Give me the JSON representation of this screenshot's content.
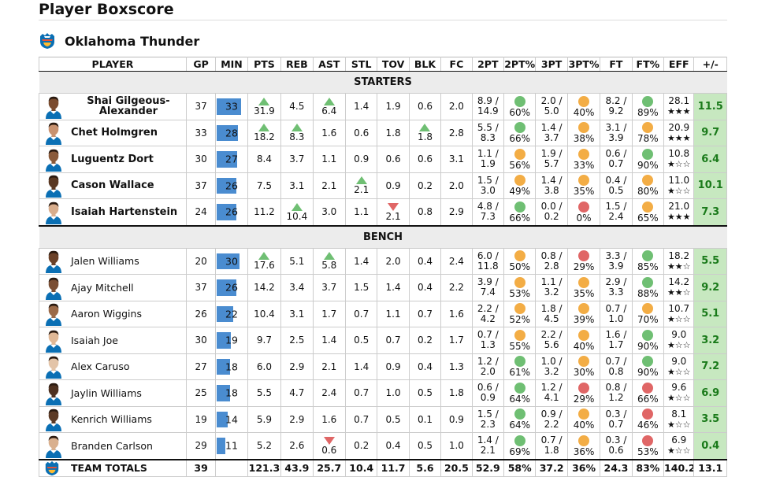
{
  "page_title": "Player Boxscore",
  "team": {
    "name": "Oklahoma Thunder",
    "logo_icon": "thunder-logo-icon"
  },
  "colors": {
    "min_bar": "#4a8cd0",
    "good": "#6fbf73",
    "mid": "#f3ad45",
    "bad": "#e06666",
    "plus_minus_bg": "#c7e8c0"
  },
  "columns": [
    "PLAYER",
    "GP",
    "MIN",
    "PTS",
    "REB",
    "AST",
    "STL",
    "TOV",
    "BLK",
    "FC",
    "2PT",
    "2PT%",
    "3PT",
    "3PT%",
    "FT",
    "FT%",
    "EFF",
    "+/-"
  ],
  "sections": {
    "starters": "STARTERS",
    "bench": "BENCH"
  },
  "starters": [
    {
      "name": "Shai Gilgeous-Alexander",
      "gp": "37",
      "min": "33",
      "pts": "31.9",
      "pts_trend": "up",
      "reb": "4.5",
      "reb_trend": "",
      "ast": "6.4",
      "ast_trend": "up",
      "stl": "1.4",
      "stl_trend": "",
      "tov": "1.9",
      "tov_trend": "",
      "blk": "0.6",
      "blk_trend": "",
      "fc": "2.0",
      "two_pt": "8.9 / 14.9",
      "two_pct": "60%",
      "two_color": "good",
      "three_pt": "2.0 / 5.0",
      "three_pct": "40%",
      "three_color": "mid",
      "ft": "8.2 / 9.2",
      "ft_pct": "89%",
      "ft_color": "good",
      "eff": "28.1",
      "stars": "★★★",
      "pm": "11.5"
    },
    {
      "name": "Chet Holmgren",
      "gp": "33",
      "min": "28",
      "pts": "18.2",
      "pts_trend": "up",
      "reb": "8.3",
      "reb_trend": "up",
      "ast": "1.6",
      "ast_trend": "",
      "stl": "0.6",
      "stl_trend": "",
      "tov": "1.8",
      "tov_trend": "",
      "blk": "1.8",
      "blk_trend": "up",
      "fc": "2.8",
      "two_pt": "5.5 / 8.3",
      "two_pct": "66%",
      "two_color": "good",
      "three_pt": "1.4 / 3.7",
      "three_pct": "38%",
      "three_color": "mid",
      "ft": "3.1 / 3.9",
      "ft_pct": "78%",
      "ft_color": "mid",
      "eff": "20.9",
      "stars": "★★★",
      "pm": "9.7"
    },
    {
      "name": "Luguentz Dort",
      "gp": "30",
      "min": "27",
      "pts": "8.4",
      "pts_trend": "",
      "reb": "3.7",
      "reb_trend": "",
      "ast": "1.1",
      "ast_trend": "",
      "stl": "0.9",
      "stl_trend": "",
      "tov": "0.6",
      "tov_trend": "",
      "blk": "0.6",
      "blk_trend": "",
      "fc": "3.1",
      "two_pt": "1.1 / 1.9",
      "two_pct": "56%",
      "two_color": "mid",
      "three_pt": "1.9 / 5.7",
      "three_pct": "33%",
      "three_color": "mid",
      "ft": "0.6 / 0.7",
      "ft_pct": "90%",
      "ft_color": "good",
      "eff": "10.8",
      "stars": "★☆☆",
      "pm": "6.4"
    },
    {
      "name": "Cason Wallace",
      "gp": "37",
      "min": "26",
      "pts": "7.5",
      "pts_trend": "",
      "reb": "3.1",
      "reb_trend": "",
      "ast": "2.1",
      "ast_trend": "",
      "stl": "2.1",
      "stl_trend": "up",
      "tov": "0.9",
      "tov_trend": "",
      "blk": "0.2",
      "blk_trend": "",
      "fc": "2.0",
      "two_pt": "1.5 / 3.0",
      "two_pct": "49%",
      "two_color": "mid",
      "three_pt": "1.4 / 3.8",
      "three_pct": "35%",
      "three_color": "mid",
      "ft": "0.4 / 0.5",
      "ft_pct": "80%",
      "ft_color": "mid",
      "eff": "11.0",
      "stars": "★☆☆",
      "pm": "10.1"
    },
    {
      "name": "Isaiah Hartenstein",
      "gp": "24",
      "min": "26",
      "pts": "11.2",
      "pts_trend": "",
      "reb": "10.4",
      "reb_trend": "up",
      "ast": "3.0",
      "ast_trend": "",
      "stl": "1.1",
      "stl_trend": "",
      "tov": "2.1",
      "tov_trend": "down",
      "blk": "0.8",
      "blk_trend": "",
      "fc": "2.9",
      "two_pt": "4.8 / 7.3",
      "two_pct": "66%",
      "two_color": "good",
      "three_pt": "0.0 / 0.2",
      "three_pct": "0%",
      "three_color": "bad",
      "ft": "1.5 / 2.4",
      "ft_pct": "65%",
      "ft_color": "mid",
      "eff": "21.0",
      "stars": "★★★",
      "pm": "7.3"
    }
  ],
  "bench": [
    {
      "name": "Jalen Williams",
      "gp": "20",
      "min": "30",
      "pts": "17.6",
      "pts_trend": "up",
      "reb": "5.1",
      "reb_trend": "",
      "ast": "5.8",
      "ast_trend": "up",
      "stl": "1.4",
      "stl_trend": "",
      "tov": "2.0",
      "tov_trend": "",
      "blk": "0.4",
      "blk_trend": "",
      "fc": "2.4",
      "two_pt": "6.0 / 11.8",
      "two_pct": "50%",
      "two_color": "mid",
      "three_pt": "0.8 / 2.8",
      "three_pct": "29%",
      "three_color": "bad",
      "ft": "3.3 / 3.9",
      "ft_pct": "85%",
      "ft_color": "good",
      "eff": "18.2",
      "stars": "★★☆",
      "pm": "5.5"
    },
    {
      "name": "Ajay Mitchell",
      "gp": "37",
      "min": "26",
      "pts": "14.2",
      "pts_trend": "",
      "reb": "3.4",
      "reb_trend": "",
      "ast": "3.7",
      "ast_trend": "",
      "stl": "1.5",
      "stl_trend": "",
      "tov": "1.4",
      "tov_trend": "",
      "blk": "0.4",
      "blk_trend": "",
      "fc": "2.2",
      "two_pt": "3.9 / 7.4",
      "two_pct": "53%",
      "two_color": "mid",
      "three_pt": "1.1 / 3.2",
      "three_pct": "35%",
      "three_color": "mid",
      "ft": "2.9 / 3.3",
      "ft_pct": "88%",
      "ft_color": "good",
      "eff": "14.2",
      "stars": "★★☆",
      "pm": "9.2"
    },
    {
      "name": "Aaron Wiggins",
      "gp": "26",
      "min": "22",
      "pts": "10.4",
      "pts_trend": "",
      "reb": "3.1",
      "reb_trend": "",
      "ast": "1.7",
      "ast_trend": "",
      "stl": "0.7",
      "stl_trend": "",
      "tov": "1.1",
      "tov_trend": "",
      "blk": "0.7",
      "blk_trend": "",
      "fc": "1.6",
      "two_pt": "2.2 / 4.2",
      "two_pct": "52%",
      "two_color": "mid",
      "three_pt": "1.8 / 4.5",
      "three_pct": "39%",
      "three_color": "mid",
      "ft": "0.7 / 1.0",
      "ft_pct": "70%",
      "ft_color": "mid",
      "eff": "10.7",
      "stars": "★☆☆",
      "pm": "5.1"
    },
    {
      "name": "Isaiah Joe",
      "gp": "30",
      "min": "19",
      "pts": "9.7",
      "pts_trend": "",
      "reb": "2.5",
      "reb_trend": "",
      "ast": "1.4",
      "ast_trend": "",
      "stl": "0.5",
      "stl_trend": "",
      "tov": "0.7",
      "tov_trend": "",
      "blk": "0.2",
      "blk_trend": "",
      "fc": "1.7",
      "two_pt": "0.7 / 1.3",
      "two_pct": "55%",
      "two_color": "mid",
      "three_pt": "2.2 / 5.6",
      "three_pct": "40%",
      "three_color": "mid",
      "ft": "1.6 / 1.7",
      "ft_pct": "90%",
      "ft_color": "good",
      "eff": "9.0",
      "stars": "★☆☆",
      "pm": "3.2"
    },
    {
      "name": "Alex Caruso",
      "gp": "27",
      "min": "18",
      "pts": "6.0",
      "pts_trend": "",
      "reb": "2.9",
      "reb_trend": "",
      "ast": "2.1",
      "ast_trend": "",
      "stl": "1.4",
      "stl_trend": "",
      "tov": "0.9",
      "tov_trend": "",
      "blk": "0.4",
      "blk_trend": "",
      "fc": "1.3",
      "two_pt": "1.2 / 2.0",
      "two_pct": "61%",
      "two_color": "good",
      "three_pt": "1.0 / 3.2",
      "three_pct": "30%",
      "three_color": "mid",
      "ft": "0.7 / 0.8",
      "ft_pct": "90%",
      "ft_color": "good",
      "eff": "9.0",
      "stars": "★☆☆",
      "pm": "7.2"
    },
    {
      "name": "Jaylin Williams",
      "gp": "25",
      "min": "18",
      "pts": "5.5",
      "pts_trend": "",
      "reb": "4.7",
      "reb_trend": "",
      "ast": "2.4",
      "ast_trend": "",
      "stl": "0.7",
      "stl_trend": "",
      "tov": "1.0",
      "tov_trend": "",
      "blk": "0.5",
      "blk_trend": "",
      "fc": "1.8",
      "two_pt": "0.6 / 0.9",
      "two_pct": "64%",
      "two_color": "good",
      "three_pt": "1.2 / 4.1",
      "three_pct": "29%",
      "three_color": "bad",
      "ft": "0.8 / 1.2",
      "ft_pct": "66%",
      "ft_color": "bad",
      "eff": "9.6",
      "stars": "★☆☆",
      "pm": "6.9"
    },
    {
      "name": "Kenrich Williams",
      "gp": "19",
      "min": "14",
      "pts": "5.9",
      "pts_trend": "",
      "reb": "2.9",
      "reb_trend": "",
      "ast": "1.6",
      "ast_trend": "",
      "stl": "0.7",
      "stl_trend": "",
      "tov": "0.5",
      "tov_trend": "",
      "blk": "0.1",
      "blk_trend": "",
      "fc": "0.9",
      "two_pt": "1.5 / 2.3",
      "two_pct": "64%",
      "two_color": "good",
      "three_pt": "0.9 / 2.2",
      "three_pct": "40%",
      "three_color": "mid",
      "ft": "0.3 / 0.7",
      "ft_pct": "46%",
      "ft_color": "bad",
      "eff": "8.1",
      "stars": "★☆☆",
      "pm": "3.5"
    },
    {
      "name": "Branden Carlson",
      "gp": "29",
      "min": "11",
      "pts": "5.2",
      "pts_trend": "",
      "reb": "2.6",
      "reb_trend": "",
      "ast": "0.6",
      "ast_trend": "down",
      "stl": "0.2",
      "stl_trend": "",
      "tov": "0.4",
      "tov_trend": "",
      "blk": "0.5",
      "blk_trend": "",
      "fc": "1.0",
      "two_pt": "1.4 / 2.1",
      "two_pct": "69%",
      "two_color": "good",
      "three_pt": "0.7 / 1.8",
      "three_pct": "36%",
      "three_color": "mid",
      "ft": "0.3 / 0.6",
      "ft_pct": "53%",
      "ft_color": "bad",
      "eff": "6.9",
      "stars": "★☆☆",
      "pm": "0.4"
    }
  ],
  "totals": {
    "label": "TEAM TOTALS",
    "gp": "39",
    "min": "",
    "pts": "121.3",
    "reb": "43.9",
    "ast": "25.7",
    "stl": "10.4",
    "tov": "11.7",
    "blk": "5.6",
    "fc": "20.5",
    "two_pt": "52.9",
    "two_pct": "58%",
    "three_pt": "37.2",
    "three_pct": "36%",
    "ft": "24.3",
    "ft_pct": "83%",
    "eff": "140.2",
    "pm": "13.1"
  }
}
